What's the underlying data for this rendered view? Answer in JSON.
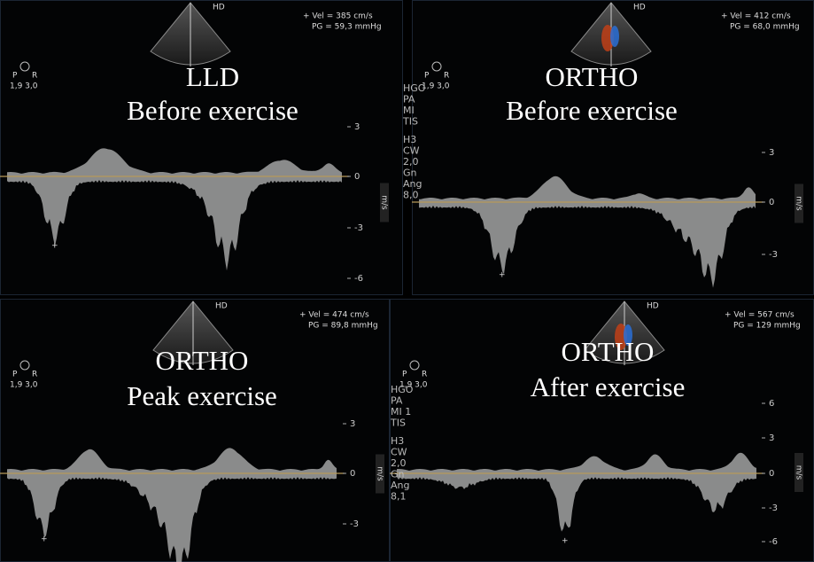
{
  "panels": [
    {
      "position": "LLD",
      "condition": "Before exercise",
      "velocity": "+ Vel = 385 cm/s",
      "gradient": "PG = 59,3 mmHg",
      "probe": "HD",
      "orientation": [
        "P",
        "R"
      ],
      "depth": "1,9 3,0",
      "unit": "m/s",
      "ticks": [
        "3",
        "0",
        "-3",
        "-6"
      ]
    },
    {
      "position": "ORTHO",
      "condition": "Before exercise",
      "velocity": "+ Vel = 412 cm/s",
      "gradient": "PG = 68,0 mmHg",
      "probe": "HD",
      "orientation": [
        "P",
        "R"
      ],
      "depth": "1,9 3,0",
      "unit": "m/s",
      "ticks": [
        "3",
        "0",
        "-3"
      ]
    },
    {
      "position": "ORTHO",
      "condition": "Peak exercise",
      "velocity": "+ Vel = 474 cm/s",
      "gradient": "PG = 89,8 mmHg",
      "probe": "HD",
      "orientation": [
        "P",
        "R"
      ],
      "depth": "1,9 3,0",
      "unit": "m/s",
      "ticks": [
        "3",
        "0",
        "-3"
      ]
    },
    {
      "position": "ORTHO",
      "condition": "After exercise",
      "velocity": "+ Vel = 567 cm/s",
      "gradient": "PG = 129 mmHg",
      "probe": "HD",
      "orientation": [
        "P",
        "R"
      ],
      "depth": "1,9 3,0",
      "unit": "m/s",
      "ticks": [
        "6",
        "3",
        "0",
        "-3",
        "-6"
      ]
    }
  ],
  "sidebars": [
    [
      "HGO",
      "PA",
      "MI",
      "TIS",
      "H3",
      "CW",
      "2,0",
      "Gn",
      "Ang",
      "8,0"
    ],
    [
      "HGO",
      "PA",
      "MI 1",
      "TIS",
      "H3",
      "CW",
      "2,0",
      "Gn",
      "Ang",
      "8,1"
    ]
  ]
}
